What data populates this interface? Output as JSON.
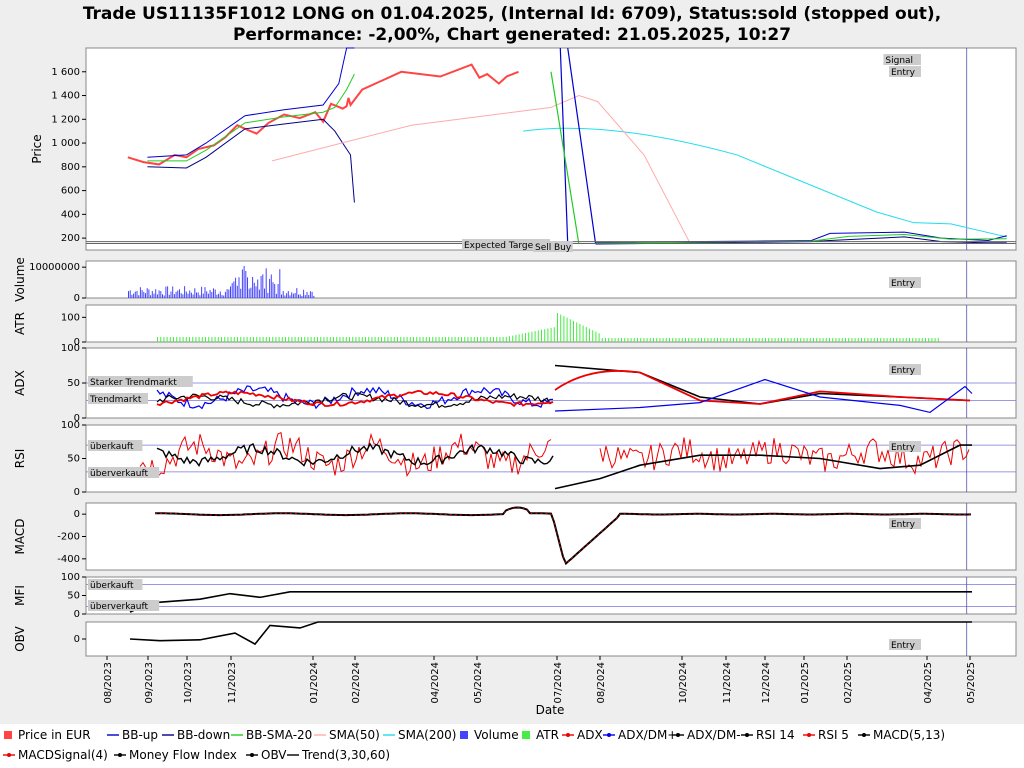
{
  "title_line1": "Trade US11135F1012 LONG on 01.04.2025, (Internal Id: 6709), Status:sold (stopped out),",
  "title_line2": "Performance: -2,00%, Chart generated: 21.05.2025, 10:27",
  "xlabel": "Date",
  "x_ticks": [
    "08/2023",
    "09/2023",
    "10/2023",
    "11/2023",
    "01/2024",
    "02/2024",
    "04/2024",
    "05/2024",
    "07/2024",
    "08/2024",
    "10/2024",
    "11/2024",
    "12/2024",
    "01/2025",
    "02/2025",
    "04/2025",
    "05/2025"
  ],
  "annotations": {
    "signal": "Signal",
    "entry": "Entry",
    "expected_target": "Expected Target",
    "sell": "Sell",
    "buy": "Buy",
    "strong_trend": "Starker Trendmarkt",
    "trend": "Trendmarkt",
    "overbought": "überkauft",
    "oversold": "überverkauft"
  },
  "legend": [
    {
      "label": "Price in EUR",
      "color": "#ff4444",
      "marker": "square"
    },
    {
      "label": "BB-up",
      "color": "#0000cc",
      "marker": "line"
    },
    {
      "label": "BB-down",
      "color": "#000088",
      "marker": "line"
    },
    {
      "label": "BB-SMA-20",
      "color": "#22cc22",
      "marker": "line"
    },
    {
      "label": "SMA(50)",
      "color": "#ffaaaa",
      "marker": "line"
    },
    {
      "label": "SMA(200)",
      "color": "#22ddee",
      "marker": "line"
    },
    {
      "label": "Volume",
      "color": "#4444ff",
      "marker": "square"
    },
    {
      "label": "ATR",
      "color": "#44ee44",
      "marker": "square"
    },
    {
      "label": "ADX",
      "color": "#ee0000",
      "marker": "dotline"
    },
    {
      "label": "ADX/DM+",
      "color": "#0000ee",
      "marker": "dotline"
    },
    {
      "label": "ADX/DM-",
      "color": "#000000",
      "marker": "dotline"
    },
    {
      "label": "RSI 14",
      "color": "#000000",
      "marker": "dotline"
    },
    {
      "label": "RSI 5",
      "color": "#ee0000",
      "marker": "dotline"
    },
    {
      "label": "MACD(5,13)",
      "color": "#000000",
      "marker": "dotline"
    },
    {
      "label": "MACDSignal(4)",
      "color": "#ee0000",
      "marker": "dotline"
    },
    {
      "label": "Money Flow Index",
      "color": "#000000",
      "marker": "dotline"
    },
    {
      "label": "OBV",
      "color": "#000000",
      "marker": "dotline"
    },
    {
      "label": "Trend(3,30,60)",
      "color": "#000000",
      "marker": "line"
    }
  ],
  "chart_data": [
    {
      "type": "line",
      "panel": "price",
      "ylabel": "Price",
      "ylim": [
        100,
        1800
      ],
      "yticks": [
        "200",
        "400",
        "600",
        "800",
        "1 000",
        "1 200",
        "1 400",
        "1 600"
      ],
      "yvals": [
        200,
        400,
        600,
        800,
        1000,
        1200,
        1400,
        1600
      ],
      "series": [
        {
          "name": "Price in EUR",
          "x": [
            0,
            0.04,
            0.08,
            0.1,
            0.12,
            0.15,
            0.18,
            0.22,
            0.25,
            0.28,
            0.3,
            0.33,
            0.36,
            0.4,
            0.44,
            0.48,
            0.5,
            0.52,
            0.55,
            0.56,
            0.565,
            0.57,
            0.6,
            0.7,
            0.8,
            0.88,
            0.9,
            0.92,
            0.95,
            0.97,
            1.0
          ],
          "y": [
            880,
            840,
            820,
            860,
            900,
            880,
            950,
            980,
            1050,
            1150,
            1120,
            1080,
            1170,
            1240,
            1210,
            1260,
            1180,
            1330,
            1290,
            1310,
            1380,
            1320,
            1450,
            1600,
            1560,
            1660,
            1550,
            1580,
            1500,
            1560,
            1600
          ]
        },
        {
          "name": "BB-up",
          "x": [
            0.05,
            0.15,
            0.2,
            0.3,
            0.4,
            0.5,
            0.54,
            0.56,
            0.57,
            0.58
          ],
          "y": [
            880,
            900,
            1000,
            1230,
            1280,
            1320,
            1500,
            1800,
            1800,
            1800
          ]
        },
        {
          "name": "BB-down",
          "x": [
            0.05,
            0.15,
            0.2,
            0.3,
            0.4,
            0.5,
            0.53,
            0.55,
            0.57,
            0.58
          ],
          "y": [
            800,
            790,
            880,
            1120,
            1160,
            1200,
            1100,
            1000,
            900,
            500
          ]
        },
        {
          "name": "BB-SMA-20",
          "x": [
            0.05,
            0.15,
            0.2,
            0.3,
            0.4,
            0.5,
            0.53,
            0.56,
            0.58
          ],
          "y": [
            850,
            850,
            940,
            1170,
            1220,
            1260,
            1300,
            1450,
            1580
          ]
        }
      ]
    },
    {
      "type": "bar",
      "panel": "volume",
      "ylabel": "Volume",
      "ylim": [
        0,
        12000000
      ],
      "yticks": [
        "0",
        "10000000"
      ],
      "yvals": [
        0,
        10000000
      ]
    },
    {
      "type": "bar",
      "panel": "atr",
      "ylabel": "ATR",
      "ylim": [
        0,
        150
      ],
      "yticks": [
        "0",
        "100"
      ],
      "yvals": [
        0,
        100
      ]
    },
    {
      "type": "line",
      "panel": "adx",
      "ylabel": "ADX",
      "ylim": [
        0,
        100
      ],
      "yticks": [
        "0",
        "50",
        "100"
      ],
      "yvals": [
        0,
        50,
        100
      ],
      "levels": [
        50,
        25
      ]
    },
    {
      "type": "line",
      "panel": "rsi",
      "ylabel": "RSI",
      "ylim": [
        0,
        100
      ],
      "yticks": [
        "0",
        "50",
        "100"
      ],
      "yvals": [
        0,
        50,
        100
      ],
      "levels": [
        70,
        30
      ]
    },
    {
      "type": "line",
      "panel": "macd",
      "ylabel": "MACD",
      "ylim": [
        -500,
        100
      ],
      "yticks": [
        "-400",
        "-200",
        "0"
      ],
      "yvals": [
        -400,
        -200,
        0
      ]
    },
    {
      "type": "line",
      "panel": "mfi",
      "ylabel": "MFI",
      "ylim": [
        0,
        100
      ],
      "yticks": [
        "0",
        "50",
        "100"
      ],
      "yvals": [
        0,
        50,
        100
      ],
      "levels": [
        80,
        20
      ]
    },
    {
      "type": "line",
      "panel": "obv",
      "ylabel": "OBV",
      "ylim": [
        -1,
        1
      ],
      "yticks": [
        "0"
      ],
      "yvals": [
        0
      ]
    }
  ]
}
